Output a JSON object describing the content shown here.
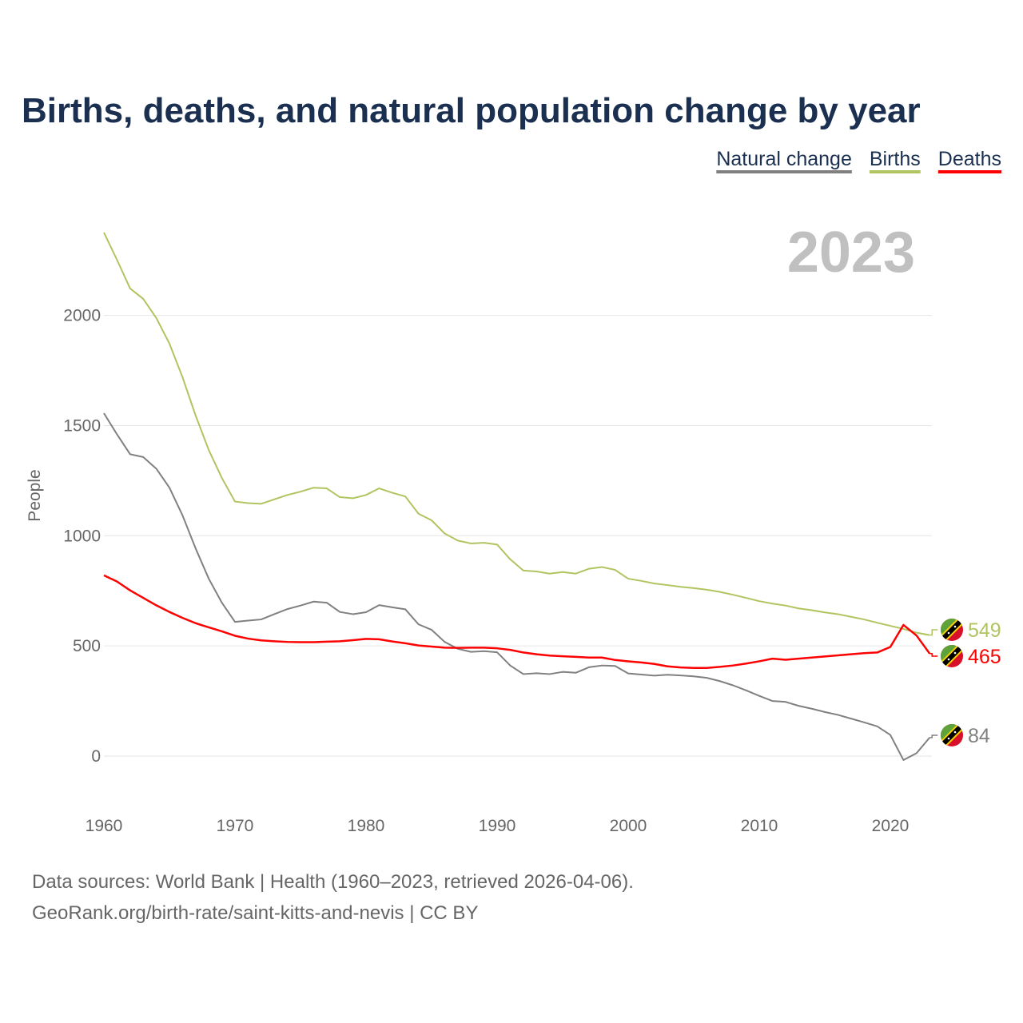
{
  "chart_data": {
    "type": "line",
    "title": "Births, deaths, and natural population change by year",
    "ylabel": "People",
    "xlabel": "",
    "xlim": [
      1960,
      2023
    ],
    "ylim": [
      -100,
      2400
    ],
    "grid": true,
    "year_label": "2023",
    "legend_position": "top-right",
    "x_ticks": [
      1960,
      1970,
      1980,
      1990,
      2000,
      2010,
      2020
    ],
    "y_ticks": [
      0,
      500,
      1000,
      1500,
      2000
    ],
    "x_start": 1960,
    "series": [
      {
        "name": "Natural change",
        "color": "#808080",
        "end_label": "84",
        "values": [
          1556,
          1460,
          1370,
          1357,
          1304,
          1218,
          1092,
          942,
          805,
          696,
          609,
          615,
          620,
          644,
          667,
          683,
          701,
          696,
          654,
          644,
          653,
          685,
          675,
          666,
          598,
          573,
          518,
          487,
          473,
          476,
          471,
          411,
          372,
          376,
          372,
          382,
          378,
          403,
          411,
          409,
          375,
          370,
          365,
          369,
          366,
          362,
          355,
          340,
          321,
          298,
          273,
          250,
          246,
          228,
          215,
          200,
          187,
          170,
          153,
          135,
          96,
          -18,
          13,
          84
        ]
      },
      {
        "name": "Births",
        "color": "#b0c460",
        "end_label": "549",
        "values": [
          2376,
          2252,
          2122,
          2075,
          1988,
          1872,
          1719,
          1545,
          1389,
          1262,
          1155,
          1148,
          1145,
          1165,
          1185,
          1200,
          1218,
          1215,
          1175,
          1170,
          1185,
          1215,
          1195,
          1178,
          1100,
          1070,
          1010,
          978,
          965,
          968,
          960,
          893,
          842,
          838,
          828,
          835,
          828,
          850,
          858,
          845,
          805,
          795,
          783,
          776,
          768,
          762,
          755,
          745,
          732,
          718,
          703,
          692,
          683,
          670,
          662,
          652,
          644,
          632,
          620,
          605,
          591,
          577,
          560,
          549
        ]
      },
      {
        "name": "Deaths",
        "color": "#ff0000",
        "end_label": "465",
        "values": [
          820,
          792,
          752,
          718,
          684,
          654,
          627,
          603,
          584,
          566,
          546,
          533,
          525,
          521,
          518,
          517,
          517,
          519,
          521,
          526,
          532,
          530,
          520,
          512,
          502,
          497,
          492,
          491,
          492,
          492,
          489,
          482,
          470,
          462,
          456,
          453,
          450,
          447,
          447,
          436,
          430,
          425,
          418,
          407,
          402,
          400,
          400,
          405,
          411,
          420,
          430,
          442,
          437,
          442,
          447,
          452,
          457,
          462,
          467,
          470,
          495,
          595,
          547,
          465
        ]
      }
    ]
  },
  "footer": {
    "line1": "Data sources: World Bank | Health (1960–2023, retrieved 2026-04-06).",
    "line2": "GeoRank.org/birth-rate/saint-kitts-and-nevis | CC BY"
  },
  "colors": {
    "title": "#1b3050",
    "year": "#c0c0c0",
    "grid": "#e6e6e6"
  }
}
